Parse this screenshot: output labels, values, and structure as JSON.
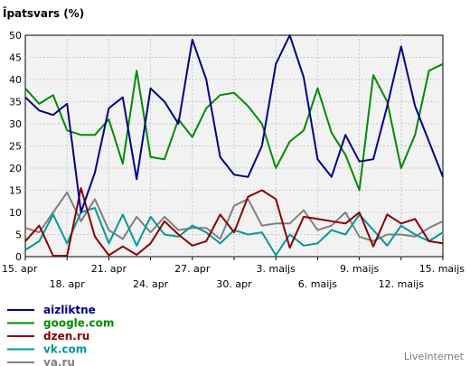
{
  "chart_data": {
    "type": "line",
    "title": "Īpatsvars (%)",
    "xlabel": "",
    "ylabel": "",
    "ylim": [
      0,
      50
    ],
    "yticks": [
      0,
      5,
      10,
      15,
      20,
      25,
      30,
      35,
      40,
      45,
      50
    ],
    "grid": true,
    "legend_position": "bottom-left",
    "x": [
      "15. apr",
      "16. apr",
      "17. apr",
      "18. apr",
      "19. apr",
      "20. apr",
      "21. apr",
      "22. apr",
      "23. apr",
      "24. apr",
      "25. apr",
      "26. apr",
      "27. apr",
      "28. apr",
      "29. apr",
      "30. apr",
      "1. maijs",
      "2. maijs",
      "3. maijs",
      "4. maijs",
      "5. maijs",
      "6. maijs",
      "7. maijs",
      "8. maijs",
      "9. maijs",
      "10. maijs",
      "11. maijs",
      "12. maijs",
      "13. maijs",
      "14. maijs",
      "15. maijs"
    ],
    "tick_labels": [
      {
        "index": 0,
        "label": "15. apr"
      },
      {
        "index": 3,
        "label": "18. apr"
      },
      {
        "index": 6,
        "label": "21. apr"
      },
      {
        "index": 9,
        "label": "24. apr"
      },
      {
        "index": 12,
        "label": "27. apr"
      },
      {
        "index": 15,
        "label": "30. apr"
      },
      {
        "index": 18,
        "label": "3. maijs"
      },
      {
        "index": 21,
        "label": "6. maijs"
      },
      {
        "index": 24,
        "label": "9. maijs"
      },
      {
        "index": 27,
        "label": "12. maijs"
      },
      {
        "index": 30,
        "label": "15. maijs"
      }
    ],
    "series": [
      {
        "name": "aizliktne",
        "color": "#00008b",
        "values": [
          36,
          33,
          32,
          34.5,
          10,
          19,
          33.5,
          36,
          17.5,
          38,
          35,
          30,
          49,
          40,
          22.5,
          18.5,
          18,
          25,
          43.5,
          50,
          40.5,
          22,
          18,
          27.5,
          21.5,
          22,
          34,
          47.5,
          34,
          26,
          18
        ]
      },
      {
        "name": "google.com",
        "color": "#008b00",
        "values": [
          38,
          34.5,
          36.5,
          28.5,
          27.5,
          27.5,
          31,
          21,
          42,
          22.5,
          22,
          31,
          27,
          33.5,
          36.5,
          37,
          34,
          30,
          20,
          26,
          28.5,
          38,
          28,
          23,
          15,
          41,
          35,
          20,
          27.5,
          42,
          43.5
        ]
      },
      {
        "name": "dzen.ru",
        "color": "#8b0000",
        "values": [
          3.5,
          7,
          0.2,
          0.2,
          15.5,
          4.5,
          0.3,
          2.3,
          0.4,
          3,
          8,
          5,
          2.5,
          3.5,
          9.5,
          5.5,
          13.5,
          15,
          13,
          2,
          9,
          8.5,
          8,
          7.5,
          10,
          2.3,
          9.5,
          7.5,
          8.5,
          3.5,
          3
        ]
      },
      {
        "name": "vk.com",
        "color": "#009999",
        "values": [
          1.5,
          3.5,
          9.5,
          3,
          10,
          11,
          3,
          9.5,
          2.5,
          9,
          5,
          4.5,
          7,
          5.5,
          3,
          6,
          5,
          5.5,
          0.3,
          5,
          2.5,
          3,
          6,
          5,
          9.5,
          6,
          2.5,
          7,
          5,
          3.5,
          5.5
        ]
      },
      {
        "name": "ya.ru",
        "color": "#808080",
        "values": [
          6.5,
          5.5,
          10,
          14.5,
          8,
          13,
          6,
          4,
          9,
          5.5,
          9,
          6,
          6.5,
          6.5,
          4,
          11.5,
          13,
          7,
          7.5,
          7.5,
          10.5,
          6,
          7,
          10,
          4.5,
          3.5,
          5,
          5,
          4.5,
          6.5,
          8
        ]
      }
    ]
  },
  "credit": "LiveInternet"
}
